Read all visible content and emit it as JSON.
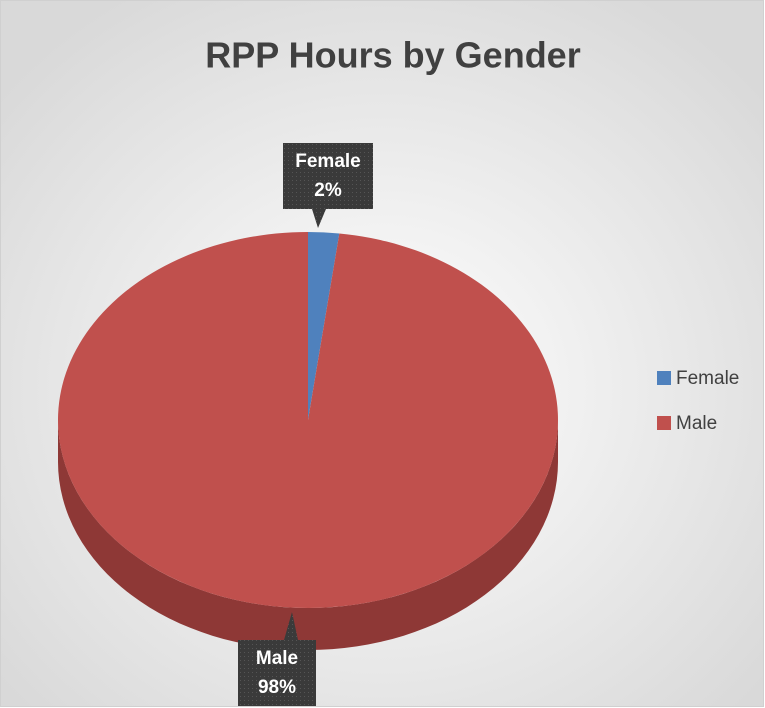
{
  "chart_data": {
    "type": "pie",
    "title": "RPP Hours by Gender",
    "categories": [
      "Female",
      "Male"
    ],
    "values": [
      2,
      98
    ],
    "value_labels": [
      "2%",
      "98%"
    ],
    "colors": [
      "#4f81bd",
      "#c0504d"
    ],
    "side_colors": [
      "#3a6091",
      "#8e3836"
    ],
    "legend": "right"
  }
}
